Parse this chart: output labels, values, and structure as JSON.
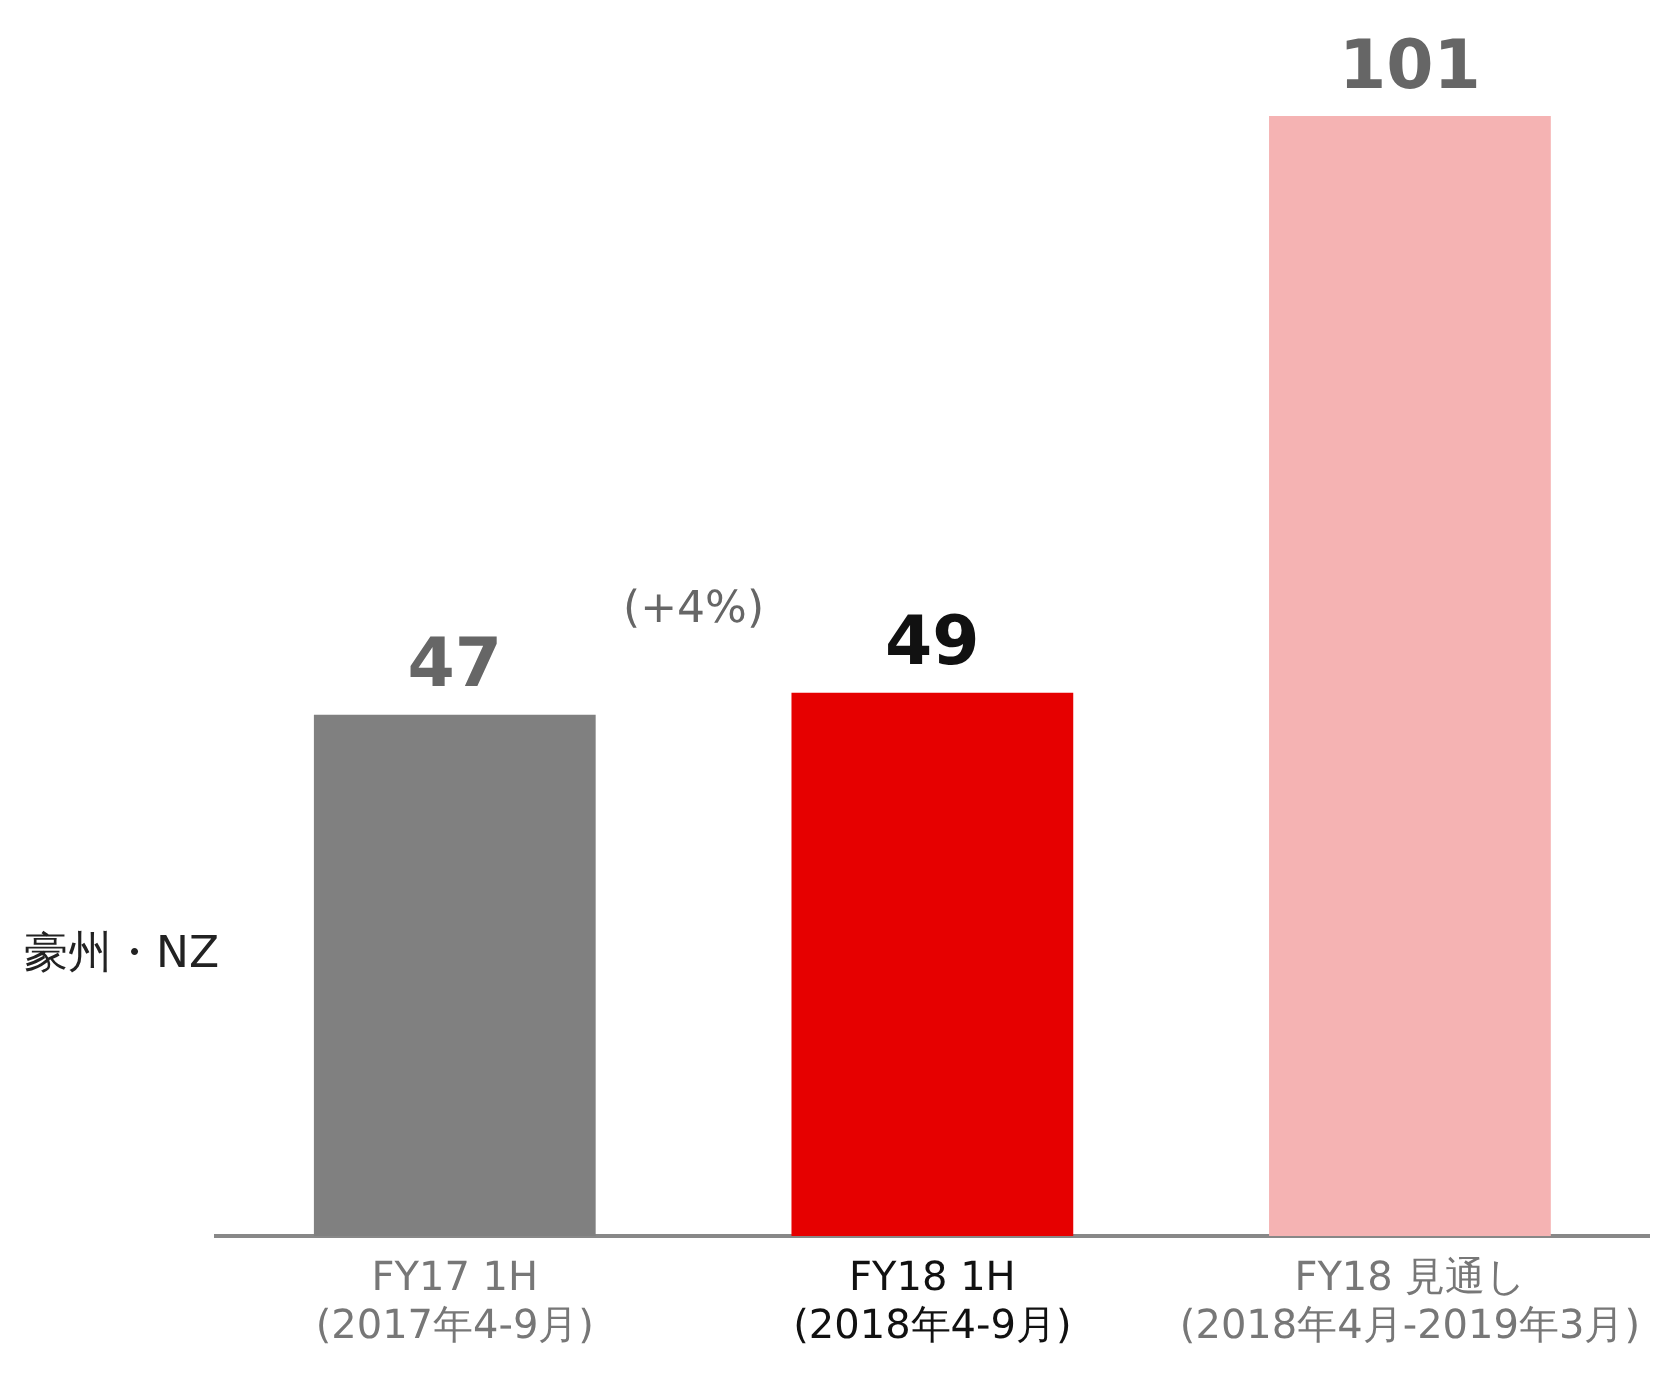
{
  "chart_data": {
    "type": "bar",
    "ylabel": "豪州・NZ",
    "categories": [
      "FY17 1H\n(2017年4-9月)",
      "FY18 1H\n(2018年4-9月)",
      "FY18 見通し\n(2018年4月-2019年3月)"
    ],
    "values": [
      47,
      49,
      101
    ],
    "colors": [
      "#808080",
      "#e60000",
      "#f5b3b3"
    ],
    "data_labels": true,
    "annotations": [
      "(+4%)"
    ],
    "grid": false,
    "legend": false
  }
}
